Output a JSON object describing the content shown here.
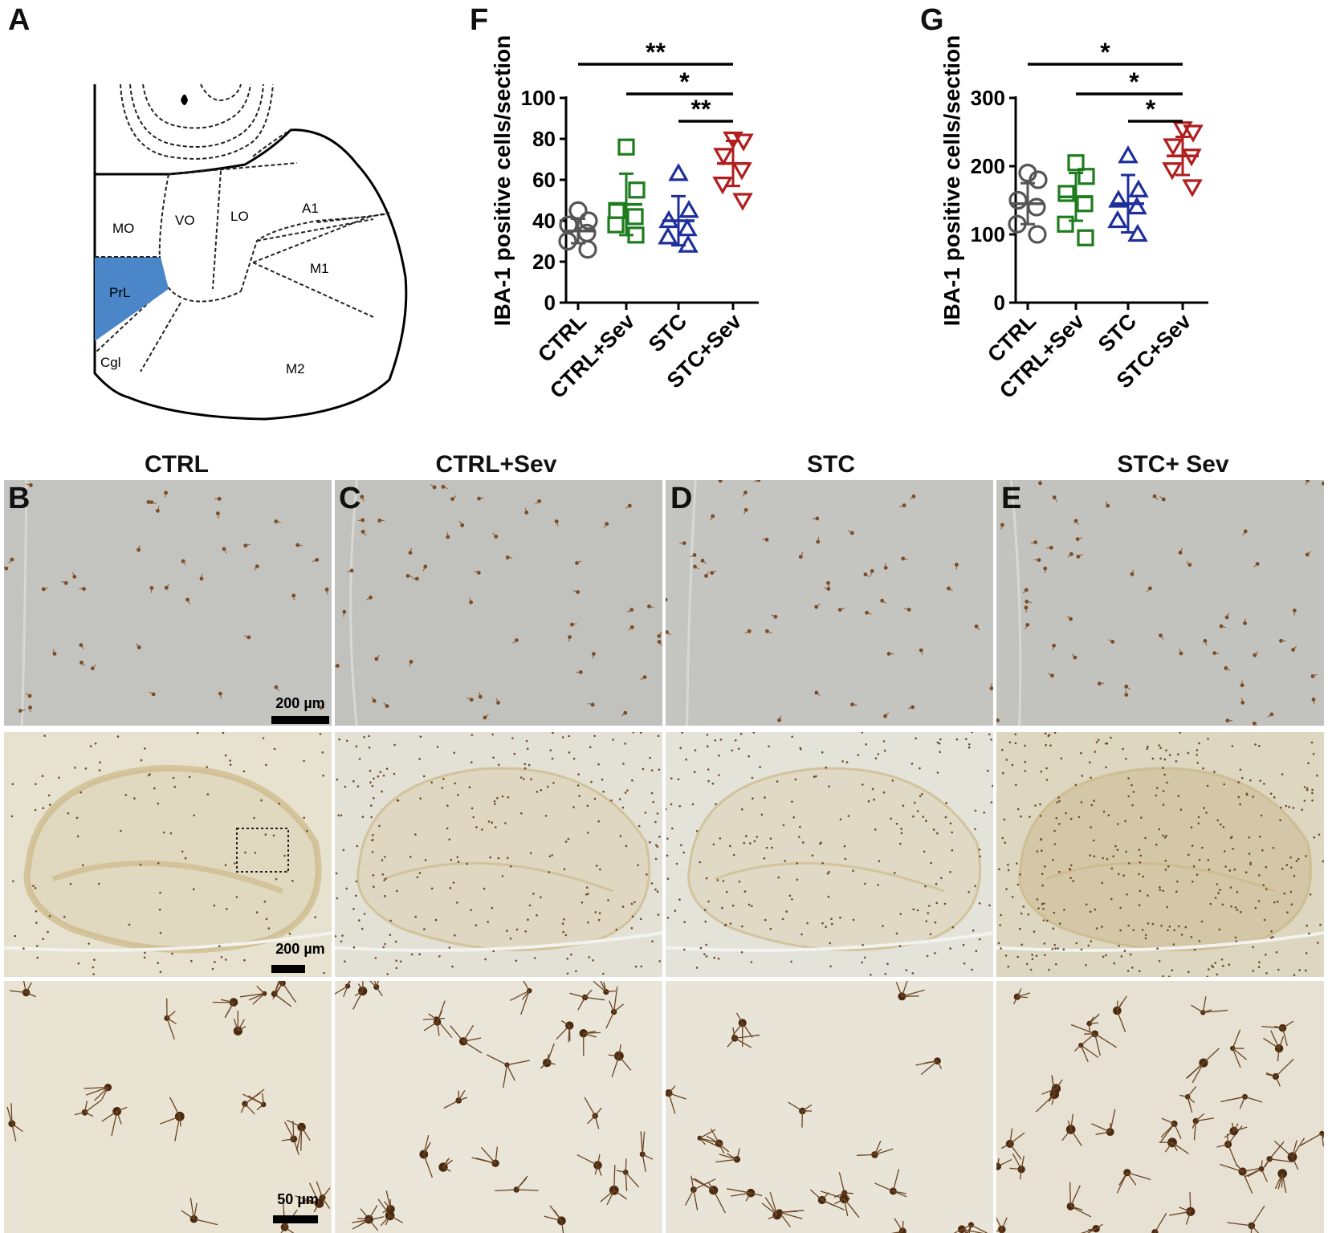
{
  "panel_letters": {
    "a": "A",
    "b": "B",
    "c": "C",
    "d": "D",
    "e": "E",
    "f": "F",
    "g": "G"
  },
  "atlas": {
    "regions": [
      "MO",
      "VO",
      "LO",
      "A1",
      "M1",
      "PrL",
      "Cgl",
      "M2"
    ],
    "highlight_color": "#4a86c8"
  },
  "column_titles": [
    "CTRL",
    "CTRL+Sev",
    "STC",
    "STC+ Sev"
  ],
  "scale_bars": {
    "row1": "200 µm",
    "row2": "200 µm",
    "row3": "50 µm"
  },
  "chart_data": [
    {
      "panel": "F",
      "type": "scatter",
      "ylabel": "IBA-1 positive cells/section",
      "ylim": [
        0,
        100
      ],
      "yticks": [
        0,
        20,
        40,
        60,
        80,
        100
      ],
      "categories": [
        "CTRL",
        "CTRL+Sev",
        "STC",
        "STC+Sev"
      ],
      "series": [
        {
          "category": "CTRL",
          "marker": "circle",
          "color": "#555555",
          "mean": 35,
          "sd": 6,
          "points": [
            45,
            40,
            38,
            34,
            30,
            26
          ]
        },
        {
          "category": "CTRL+Sev",
          "marker": "square",
          "color": "#1e7b1e",
          "mean": 48,
          "sd": 15,
          "points": [
            76,
            55,
            45,
            42,
            38,
            33
          ]
        },
        {
          "category": "STC",
          "marker": "triangle",
          "color": "#1f2f9a",
          "mean": 40,
          "sd": 12,
          "points": [
            63,
            45,
            40,
            36,
            32,
            28
          ]
        },
        {
          "category": "STC+Sev",
          "marker": "triangle-down",
          "color": "#b01e1e",
          "mean": 68,
          "sd": 11,
          "points": [
            80,
            79,
            72,
            65,
            58,
            50
          ]
        }
      ],
      "significance": [
        {
          "from": "CTRL",
          "to": "STC+Sev",
          "label": "**"
        },
        {
          "from": "CTRL+Sev",
          "to": "STC+Sev",
          "label": "*"
        },
        {
          "from": "STC",
          "to": "STC+Sev",
          "label": "**"
        }
      ]
    },
    {
      "panel": "G",
      "type": "scatter",
      "ylabel": "IBA-1 positive cells/section",
      "ylim": [
        0,
        300
      ],
      "yticks": [
        0,
        100,
        200,
        300
      ],
      "categories": [
        "CTRL",
        "CTRL+Sev",
        "STC",
        "STC+Sev"
      ],
      "series": [
        {
          "category": "CTRL",
          "marker": "circle",
          "color": "#555555",
          "mean": 145,
          "sd": 30,
          "points": [
            190,
            180,
            150,
            140,
            115,
            100
          ]
        },
        {
          "category": "CTRL+Sev",
          "marker": "square",
          "color": "#1e7b1e",
          "mean": 155,
          "sd": 35,
          "points": [
            205,
            185,
            160,
            145,
            115,
            95
          ]
        },
        {
          "category": "STC",
          "marker": "triangle",
          "color": "#1f2f9a",
          "mean": 145,
          "sd": 42,
          "points": [
            215,
            165,
            150,
            140,
            120,
            100
          ]
        },
        {
          "category": "STC+Sev",
          "marker": "triangle-down",
          "color": "#b01e1e",
          "mean": 215,
          "sd": 28,
          "points": [
            255,
            250,
            230,
            215,
            195,
            170
          ]
        }
      ],
      "significance": [
        {
          "from": "CTRL",
          "to": "STC+Sev",
          "label": "*"
        },
        {
          "from": "CTRL+Sev",
          "to": "STC+Sev",
          "label": "*"
        },
        {
          "from": "STC",
          "to": "STC+Sev",
          "label": "*"
        }
      ]
    }
  ]
}
